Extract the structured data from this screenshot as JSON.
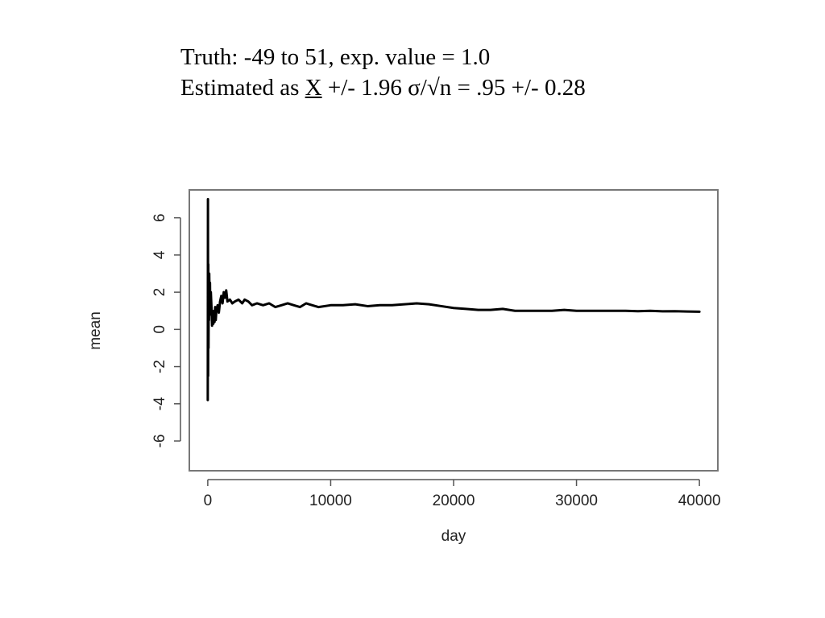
{
  "caption": {
    "line1": "Truth: -49 to 51, exp. value = 1.0",
    "line2_prefix": "Estimated as ",
    "line2_symbol": "X",
    "line2_suffix": " +/- 1.96 σ/√n = .95 +/- 0.28"
  },
  "chart_data": {
    "type": "line",
    "title": "",
    "xlabel": "day",
    "ylabel": "mean",
    "xlim": [
      -1500,
      41500
    ],
    "ylim": [
      -7.6,
      7.5
    ],
    "x_ticks": [
      0,
      10000,
      20000,
      30000,
      40000
    ],
    "x_tick_labels": [
      "0",
      "10000",
      "20000",
      "30000",
      "40000"
    ],
    "y_ticks": [
      -6,
      -4,
      -2,
      0,
      2,
      4,
      6
    ],
    "y_tick_labels": [
      "-6",
      "-4",
      "-2",
      "0",
      "2",
      "4",
      "6"
    ],
    "grid": false,
    "series": [
      {
        "color": "#000000",
        "x": [
          0,
          15,
          30,
          45,
          60,
          80,
          100,
          120,
          150,
          180,
          210,
          250,
          300,
          350,
          400,
          450,
          500,
          550,
          600,
          650,
          700,
          800,
          900,
          1000,
          1100,
          1200,
          1300,
          1400,
          1500,
          1600,
          1800,
          2000,
          2200,
          2500,
          2800,
          3000,
          3300,
          3600,
          4000,
          4500,
          5000,
          5500,
          6000,
          6500,
          7000,
          7500,
          8000,
          8500,
          9000,
          10000,
          11000,
          12000,
          13000,
          14000,
          15000,
          16000,
          17000,
          18000,
          19000,
          20000,
          21000,
          22000,
          23000,
          24000,
          25000,
          26000,
          27000,
          28000,
          29000,
          30000,
          31000,
          32000,
          33000,
          34000,
          35000,
          36000,
          37000,
          38000,
          39000,
          40000
        ],
        "values": [
          -3.8,
          7.0,
          -2.5,
          3.5,
          -1.0,
          2.5,
          0.5,
          3.0,
          1.5,
          2.5,
          0.8,
          2.0,
          1.2,
          0.2,
          0.9,
          0.3,
          1.0,
          0.4,
          1.2,
          0.5,
          1.0,
          1.3,
          0.9,
          1.5,
          1.8,
          1.4,
          2.0,
          1.7,
          2.1,
          1.5,
          1.6,
          1.4,
          1.5,
          1.6,
          1.4,
          1.6,
          1.5,
          1.3,
          1.4,
          1.3,
          1.4,
          1.2,
          1.3,
          1.4,
          1.3,
          1.2,
          1.4,
          1.3,
          1.2,
          1.3,
          1.3,
          1.35,
          1.25,
          1.3,
          1.3,
          1.35,
          1.4,
          1.35,
          1.25,
          1.15,
          1.1,
          1.05,
          1.05,
          1.1,
          1.0,
          1.0,
          1.0,
          1.0,
          1.05,
          1.0,
          1.0,
          1.0,
          1.0,
          1.0,
          0.98,
          1.0,
          0.97,
          0.98,
          0.96,
          0.95
        ]
      }
    ]
  }
}
